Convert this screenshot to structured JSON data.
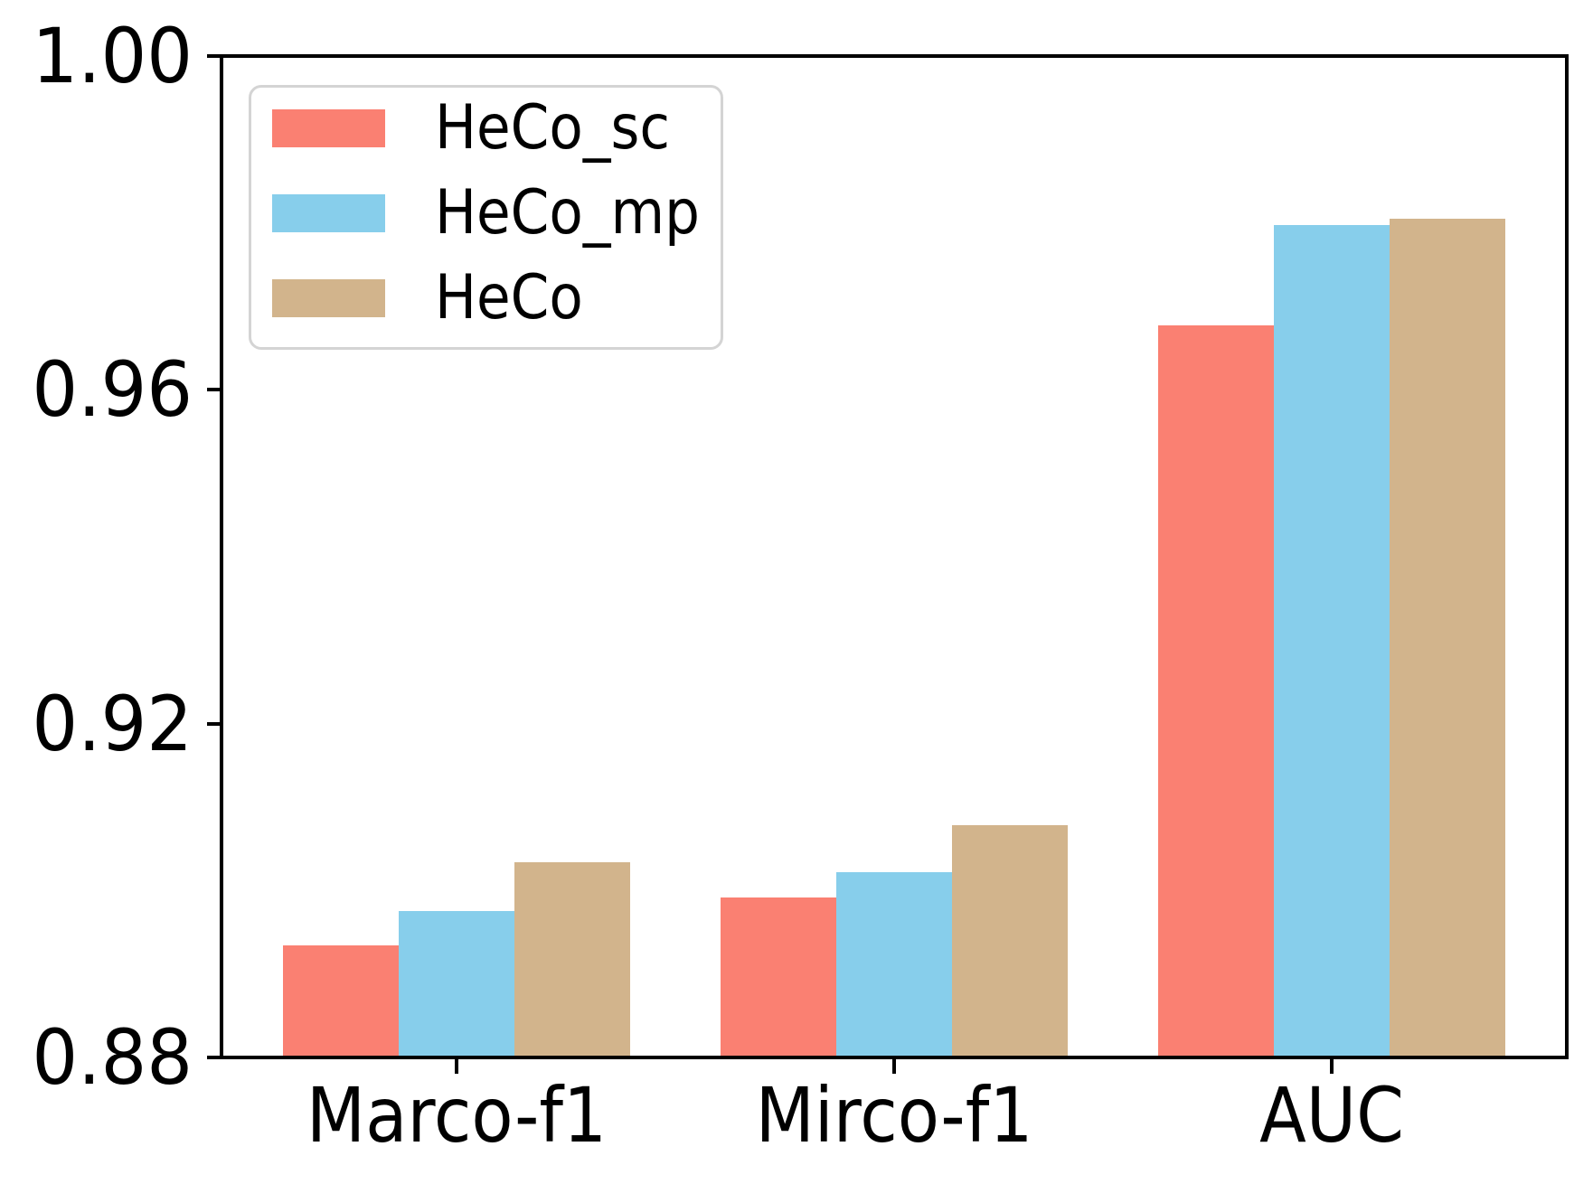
{
  "figure": {
    "background": "#ffffff",
    "spine_color": "#000000",
    "tick_label_color": "#000000",
    "legend_border_color": "#d4d4d4"
  },
  "chart_data": {
    "type": "bar",
    "title": "",
    "xlabel": "",
    "ylabel": "",
    "grid": false,
    "legend_position": "upper left",
    "ylim": [
      0.88,
      1.0
    ],
    "yticks": [
      {
        "value": 1.0,
        "label": "1.00"
      },
      {
        "value": 0.96,
        "label": "0.96"
      },
      {
        "value": 0.92,
        "label": "0.92"
      },
      {
        "value": 0.88,
        "label": "0.88"
      }
    ],
    "categories": [
      "Marco-f1",
      "Mirco-f1",
      "AUC"
    ],
    "series": [
      {
        "name": "HeCo_sc",
        "color": "#FA8072",
        "values": [
          0.8933,
          0.899,
          0.9678
        ]
      },
      {
        "name": "HeCo_mp",
        "color": "#87CEEB",
        "values": [
          0.8974,
          0.9021,
          0.9799
        ]
      },
      {
        "name": "HeCo",
        "color": "#D2B48C",
        "values": [
          0.9033,
          0.9077,
          0.9807
        ]
      }
    ]
  }
}
